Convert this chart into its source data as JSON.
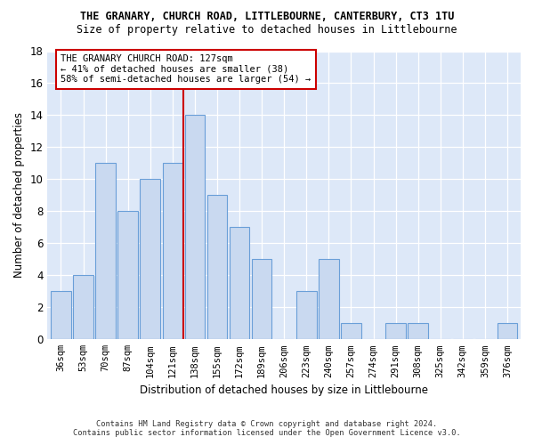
{
  "title": "THE GRANARY, CHURCH ROAD, LITTLEBOURNE, CANTERBURY, CT3 1TU",
  "subtitle": "Size of property relative to detached houses in Littlebourne",
  "xlabel": "Distribution of detached houses by size in Littlebourne",
  "ylabel": "Number of detached properties",
  "categories": [
    "36sqm",
    "53sqm",
    "70sqm",
    "87sqm",
    "104sqm",
    "121sqm",
    "138sqm",
    "155sqm",
    "172sqm",
    "189sqm",
    "206sqm",
    "223sqm",
    "240sqm",
    "257sqm",
    "274sqm",
    "291sqm",
    "308sqm",
    "325sqm",
    "342sqm",
    "359sqm",
    "376sqm"
  ],
  "values": [
    3,
    4,
    11,
    8,
    10,
    11,
    14,
    9,
    7,
    5,
    0,
    3,
    5,
    1,
    0,
    1,
    1,
    0,
    0,
    0,
    1
  ],
  "bar_color": "#c9d9f0",
  "bar_edge_color": "#6a9fd8",
  "ref_line_x": 5.5,
  "ref_line_color": "#cc0000",
  "annotation_line1": "THE GRANARY CHURCH ROAD: 127sqm",
  "annotation_line2": "← 41% of detached houses are smaller (38)",
  "annotation_line3": "58% of semi-detached houses are larger (54) →",
  "annotation_box_color": "#ffffff",
  "annotation_box_edge": "#cc0000",
  "ylim": [
    0,
    18
  ],
  "yticks": [
    0,
    2,
    4,
    6,
    8,
    10,
    12,
    14,
    16,
    18
  ],
  "footer1": "Contains HM Land Registry data © Crown copyright and database right 2024.",
  "footer2": "Contains public sector information licensed under the Open Government Licence v3.0.",
  "bg_color": "#ffffff",
  "plot_bg_color": "#dde8f8"
}
